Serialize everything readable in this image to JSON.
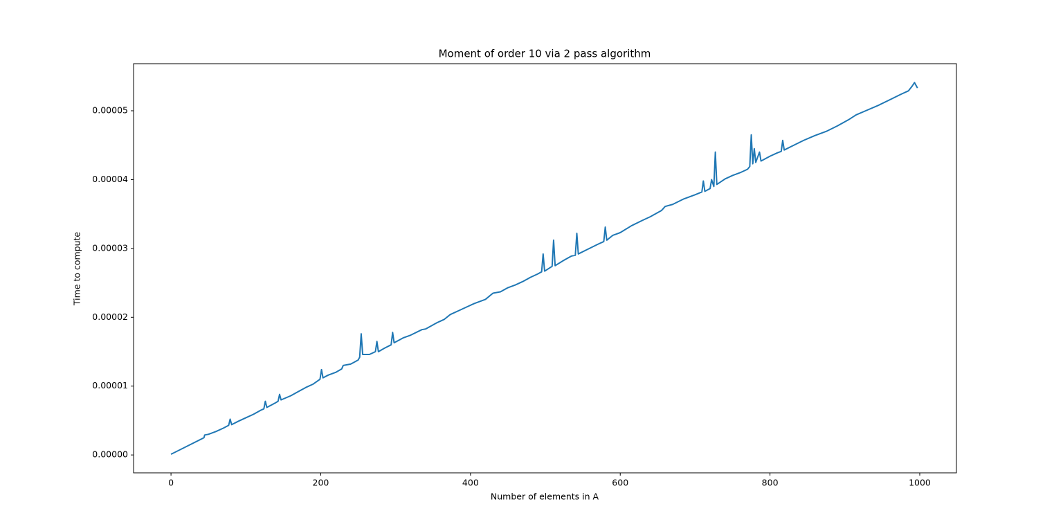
{
  "chart_data": {
    "type": "line",
    "title": "Moment of order 10 via 2 pass algorithm",
    "xlabel": "Number of elements in A",
    "ylabel": "Time to compute",
    "x": [
      0,
      44,
      45,
      50,
      60,
      70,
      77,
      79,
      81,
      90,
      100,
      110,
      120,
      124,
      126,
      128,
      140,
      143,
      145,
      147,
      160,
      170,
      180,
      190,
      199,
      201,
      203,
      210,
      220,
      228,
      230,
      240,
      250,
      252,
      254,
      256,
      265,
      273,
      275,
      277,
      285,
      294,
      296,
      298,
      310,
      320,
      335,
      340,
      355,
      365,
      373,
      385,
      395,
      405,
      420,
      430,
      440,
      450,
      460,
      470,
      480,
      490,
      495,
      497,
      499,
      509,
      511,
      513,
      525,
      535,
      540,
      542,
      544,
      555,
      570,
      578,
      580,
      582,
      590,
      600,
      615,
      630,
      640,
      655,
      660,
      670,
      685,
      700,
      709,
      711,
      713,
      720,
      722,
      725,
      727,
      729,
      740,
      750,
      760,
      770,
      773,
      775,
      777,
      779,
      781,
      786,
      788,
      800,
      810,
      815,
      817,
      819,
      830,
      845,
      860,
      875,
      890,
      905,
      915,
      930,
      945,
      960,
      975,
      985,
      990,
      993,
      997
    ],
    "series": [
      {
        "name": "Time to compute",
        "color": "#1f77b4",
        "values": [
          1e-07,
          2.5e-06,
          2.9e-06,
          3e-06,
          3.4e-06,
          3.9e-06,
          4.3e-06,
          5.2e-06,
          4.4e-06,
          4.9e-06,
          5.4e-06,
          5.9e-06,
          6.5e-06,
          6.7e-06,
          7.8e-06,
          6.9e-06,
          7.6e-06,
          7.8e-06,
          8.8e-06,
          8e-06,
          8.6e-06,
          9.2e-06,
          9.8e-06,
          1.03e-05,
          1.1e-05,
          1.24e-05,
          1.12e-05,
          1.16e-05,
          1.2e-05,
          1.25e-05,
          1.3e-05,
          1.32e-05,
          1.38e-05,
          1.42e-05,
          1.76e-05,
          1.46e-05,
          1.46e-05,
          1.5e-05,
          1.65e-05,
          1.5e-05,
          1.55e-05,
          1.6e-05,
          1.78e-05,
          1.63e-05,
          1.7e-05,
          1.74e-05,
          1.82e-05,
          1.83e-05,
          1.92e-05,
          1.97e-05,
          2.04e-05,
          2.1e-05,
          2.15e-05,
          2.2e-05,
          2.26e-05,
          2.35e-05,
          2.37e-05,
          2.43e-05,
          2.47e-05,
          2.52e-05,
          2.58e-05,
          2.63e-05,
          2.66e-05,
          2.92e-05,
          2.67e-05,
          2.74e-05,
          3.12e-05,
          2.75e-05,
          2.83e-05,
          2.89e-05,
          2.9e-05,
          3.22e-05,
          2.92e-05,
          2.98e-05,
          3.06e-05,
          3.1e-05,
          3.31e-05,
          3.12e-05,
          3.19e-05,
          3.23e-05,
          3.33e-05,
          3.41e-05,
          3.46e-05,
          3.55e-05,
          3.61e-05,
          3.64e-05,
          3.72e-05,
          3.78e-05,
          3.82e-05,
          3.98e-05,
          3.83e-05,
          3.87e-05,
          4e-05,
          3.9e-05,
          4.4e-05,
          3.93e-05,
          4.01e-05,
          4.06e-05,
          4.1e-05,
          4.15e-05,
          4.19e-05,
          4.65e-05,
          4.23e-05,
          4.45e-05,
          4.25e-05,
          4.4e-05,
          4.27e-05,
          4.34e-05,
          4.39e-05,
          4.41e-05,
          4.57e-05,
          4.43e-05,
          4.49e-05,
          4.57e-05,
          4.64e-05,
          4.7e-05,
          4.78e-05,
          4.87e-05,
          4.94e-05,
          5.01e-05,
          5.08e-05,
          5.16e-05,
          5.24e-05,
          5.29e-05,
          5.36e-05,
          5.41e-05,
          5.33e-05
        ]
      }
    ],
    "xlim": [
      -50,
      1049
    ],
    "xticks": [
      0,
      200,
      400,
      600,
      800,
      1000
    ],
    "ylim": [
      -2.6e-06,
      5.684e-05
    ],
    "yticks": [
      {
        "value": 0,
        "label": "0.00000"
      },
      1e-05,
      2e-05,
      3e-05,
      4e-05,
      5e-05
    ],
    "grid": false
  }
}
